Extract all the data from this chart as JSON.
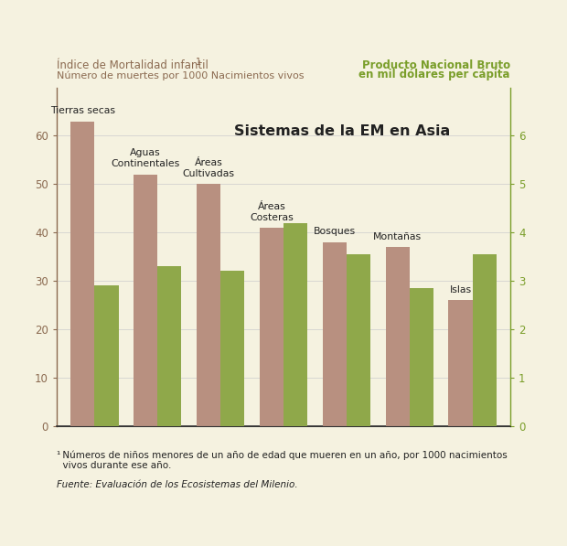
{
  "categories": [
    "Tierras secas",
    "Aguas\nContinentales",
    "Áreas\nCultivadas",
    "Áreas\nCosteras",
    "Bosques",
    "Montañas",
    "Islas"
  ],
  "mortality": [
    63,
    52,
    50,
    41,
    38,
    37,
    26
  ],
  "gnp": [
    2.9,
    3.3,
    3.2,
    4.2,
    3.55,
    2.85,
    3.55
  ],
  "bar_color_mortality": "#b89080",
  "bar_color_gnp": "#8fa84a",
  "background_color": "#f5f2e0",
  "title": "Sistemas de la EM en Asia",
  "left_title_line1": "Índice de Mortalidad infantil",
  "left_title_sup": "1",
  "left_title_line2": "Número de muertes por 1000 Nacimientos vivos",
  "right_title_line1": "Producto Nacional Bruto",
  "right_title_line2": "en mil dólares per cápita",
  "footnote1": "¹ Números de niños menores de un año de edad que mueren en un año, por 1000 nacimientos",
  "footnote1b": "  vivos durante ese año.",
  "footnote2": "Fuente: Evaluación de los Ecosistemas del Milenio.",
  "ylim_left": [
    0,
    70
  ],
  "ylim_right": [
    0,
    7
  ],
  "yticks_left": [
    0,
    10,
    20,
    30,
    40,
    50,
    60
  ],
  "yticks_right": [
    0,
    1,
    2,
    3,
    4,
    5,
    6
  ],
  "left_axis_color": "#8b6a50",
  "right_axis_color": "#7a9e2a",
  "title_color": "#222222"
}
